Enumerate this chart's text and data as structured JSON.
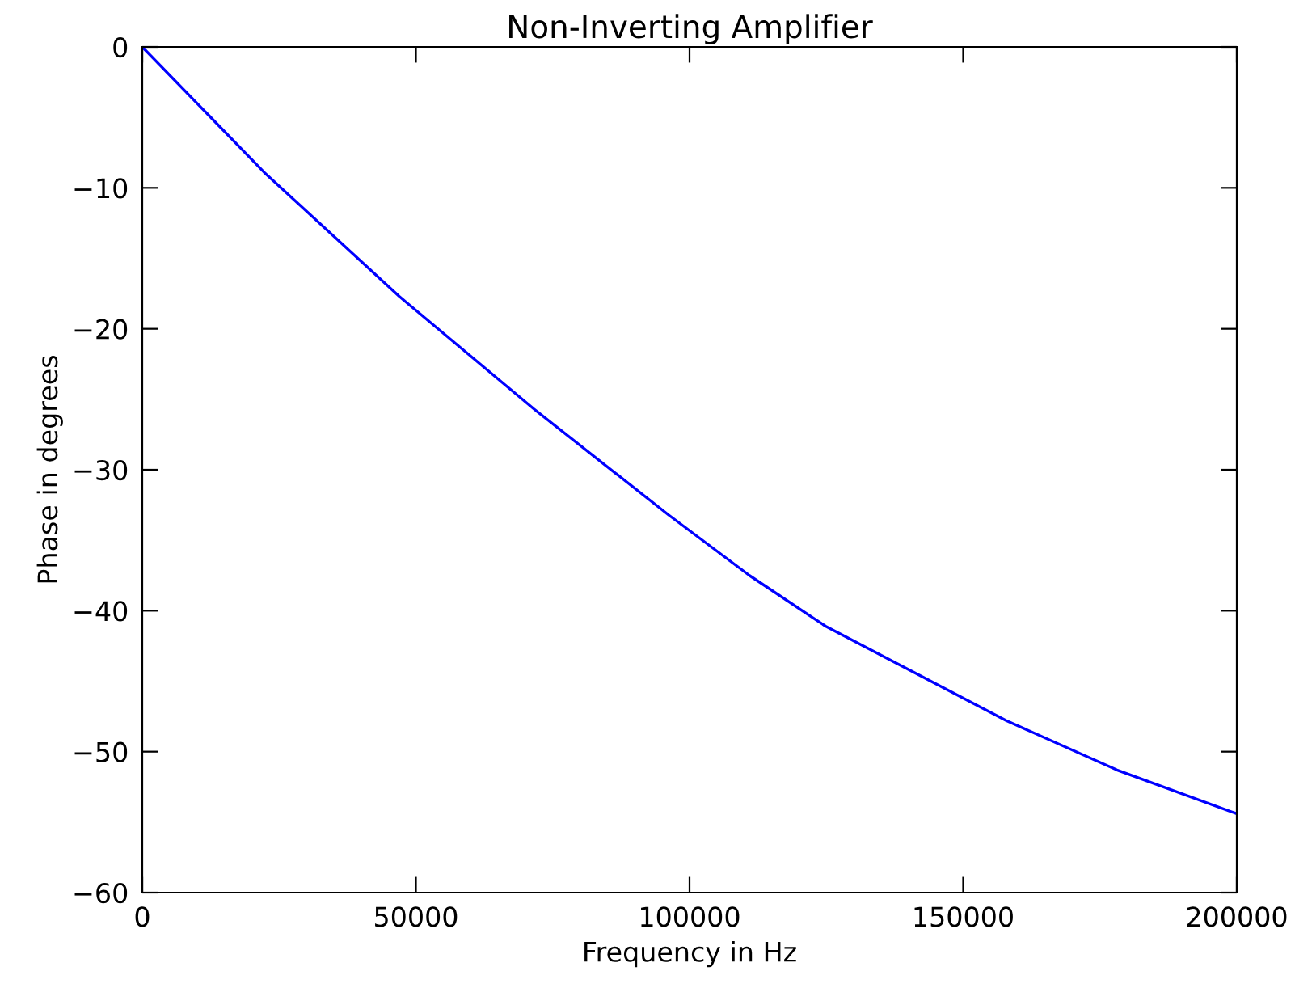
{
  "chart_data": {
    "type": "line",
    "title": "Non-Inverting Amplifier",
    "xlabel": "Frequency in Hz",
    "ylabel": "Phase in degrees",
    "x": [
      0,
      22280,
      46950,
      71600,
      96150,
      110950,
      124850,
      141120,
      157870,
      178100,
      200000
    ],
    "series": [
      {
        "color": "#0000ff",
        "values": [
          0,
          -8.9,
          -17.7,
          -25.7,
          -33.2,
          -37.5,
          -41.1,
          -44.4,
          -47.8,
          -51.3,
          -54.4
        ]
      }
    ],
    "xlim": [
      0,
      200000
    ],
    "ylim": [
      -60,
      0
    ],
    "xticks": [
      0,
      50000,
      100000,
      150000,
      200000
    ],
    "yticks": [
      -60,
      -50,
      -40,
      -30,
      -20,
      -10,
      0
    ],
    "grid": false,
    "legend": false,
    "marker": "none",
    "line_style": "solid"
  }
}
